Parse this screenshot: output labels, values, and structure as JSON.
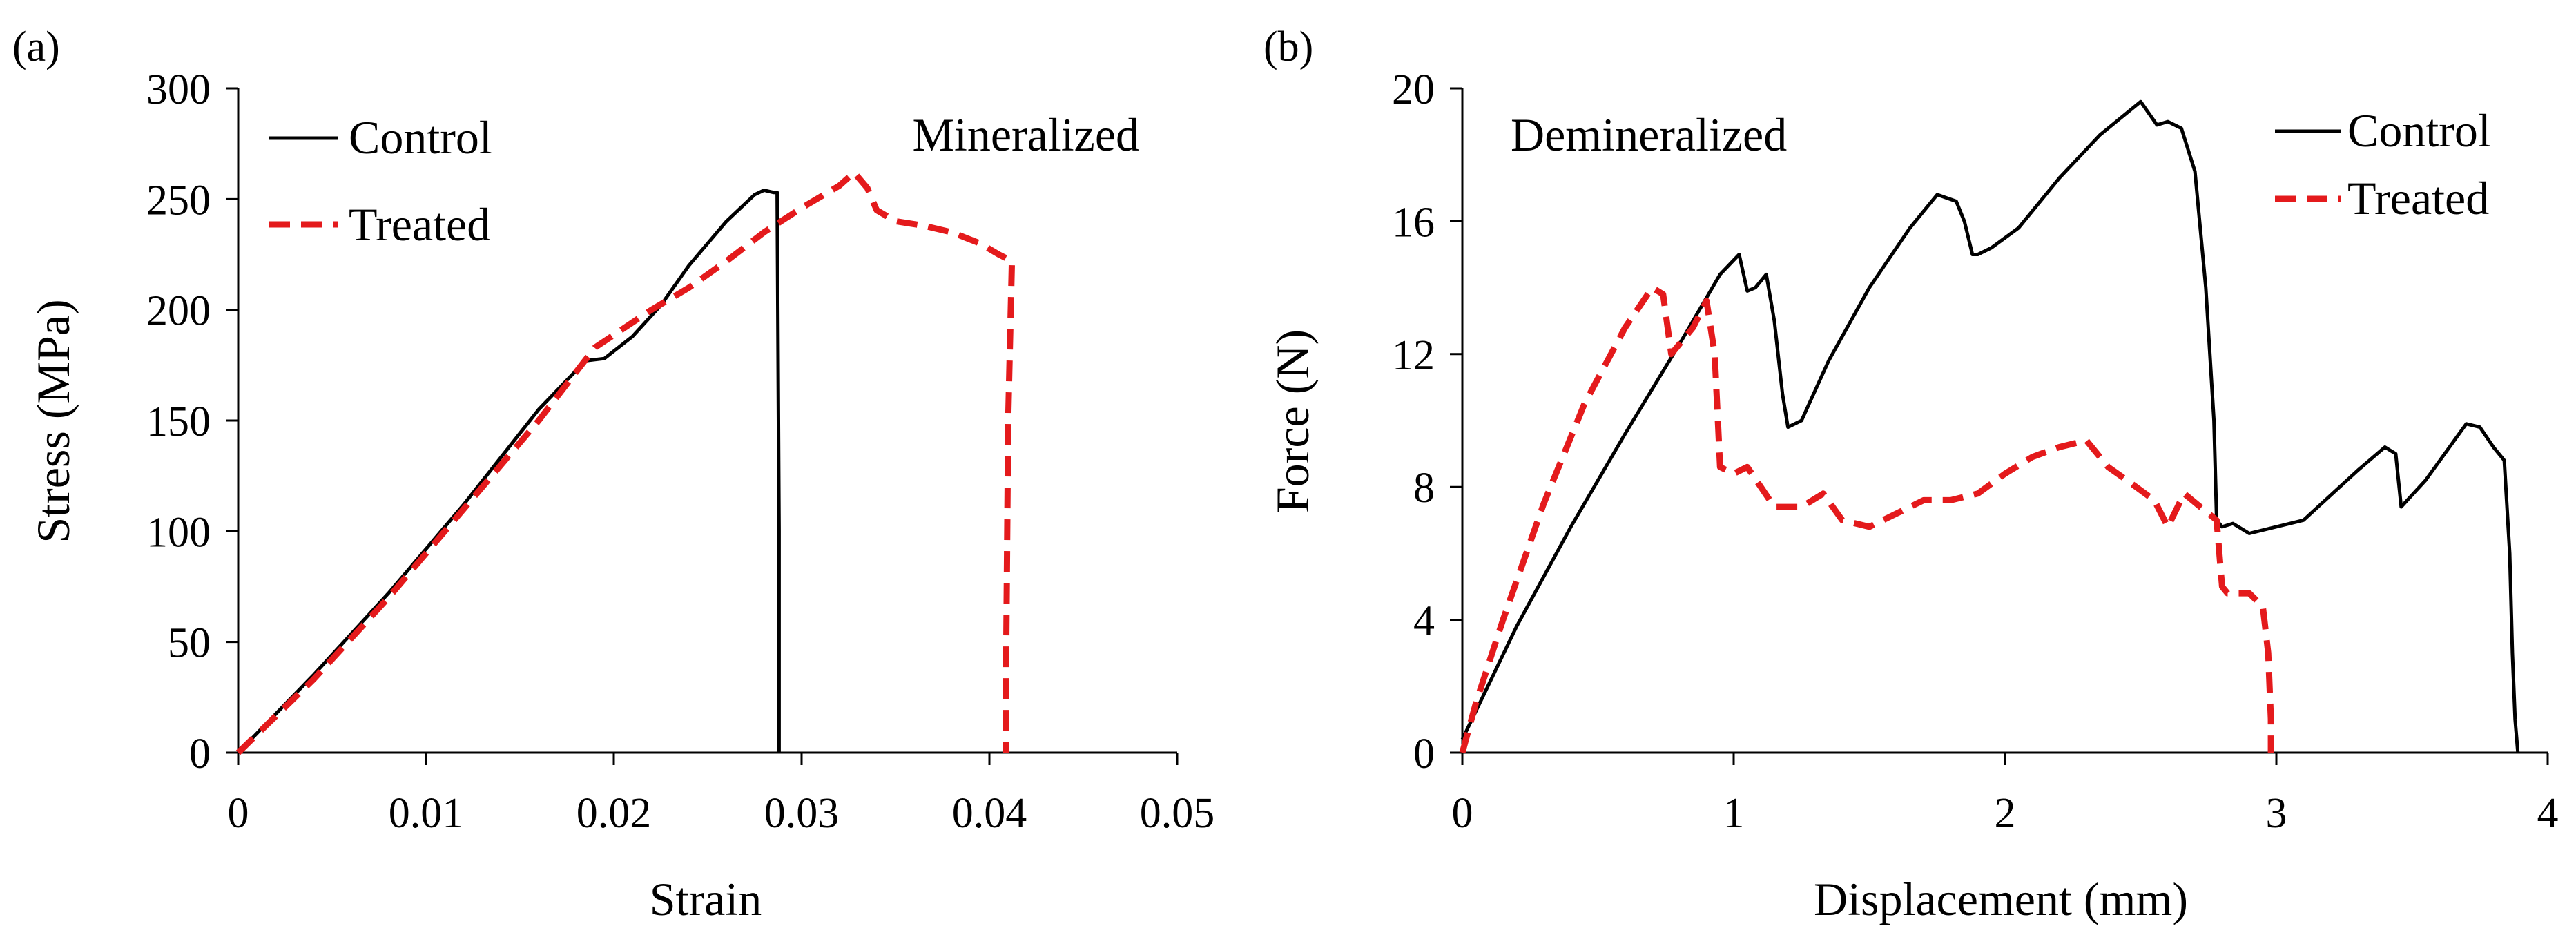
{
  "figure": {
    "panel_a_tag": "(a)",
    "panel_b_tag": "(b)"
  },
  "colors": {
    "control": "#000000",
    "treated": "#e41a1c",
    "axis": "#000000"
  },
  "chart_data": [
    {
      "id": "a",
      "type": "line",
      "annotation": "Mineralized",
      "xlabel": "Strain",
      "ylabel": "Stress (MPa)",
      "xlim": [
        0,
        0.05
      ],
      "ylim": [
        0,
        300
      ],
      "xticks": [
        0,
        0.01,
        0.02,
        0.03,
        0.04,
        0.05
      ],
      "xtick_labels": [
        "0",
        "0.01",
        "0.02",
        "0.03",
        "0.04",
        "0.05"
      ],
      "yticks": [
        0,
        50,
        100,
        150,
        200,
        250,
        300
      ],
      "ytick_labels": [
        "0",
        "50",
        "100",
        "150",
        "200",
        "250",
        "300"
      ],
      "legend_position": "top-left",
      "series": [
        {
          "name": "Control",
          "style": "solid",
          "x": [
            0,
            0.004,
            0.008,
            0.012,
            0.016,
            0.0185,
            0.0195,
            0.021,
            0.0225,
            0.024,
            0.026,
            0.0275,
            0.028,
            0.0285,
            0.0287,
            0.0288,
            0.0288
          ],
          "y": [
            0,
            35,
            72,
            112,
            155,
            177,
            178,
            188,
            202,
            220,
            240,
            252,
            254,
            253,
            253,
            100,
            0
          ]
        },
        {
          "name": "Treated",
          "style": "dashed",
          "x": [
            0,
            0.004,
            0.008,
            0.012,
            0.016,
            0.019,
            0.022,
            0.024,
            0.026,
            0.028,
            0.03,
            0.032,
            0.0328,
            0.0335,
            0.034,
            0.035,
            0.0365,
            0.038,
            0.0395,
            0.0405,
            0.0412,
            0.041,
            0.0409,
            0.0409
          ],
          "y": [
            0,
            33,
            70,
            110,
            150,
            183,
            200,
            210,
            222,
            235,
            246,
            256,
            262,
            255,
            245,
            240,
            238,
            235,
            230,
            225,
            222,
            150,
            50,
            0
          ]
        }
      ]
    },
    {
      "id": "b",
      "type": "line",
      "annotation": "Demineralized",
      "xlabel": "Displacement  (mm)",
      "ylabel": "Force  (N)",
      "xlim": [
        0,
        4
      ],
      "ylim": [
        0,
        20
      ],
      "xticks": [
        0,
        1,
        2,
        3,
        4
      ],
      "xtick_labels": [
        "0",
        "1",
        "2",
        "3",
        "4"
      ],
      "yticks": [
        0,
        4,
        8,
        12,
        16,
        20
      ],
      "ytick_labels": [
        "0",
        "4",
        "8",
        "12",
        "16",
        "20"
      ],
      "legend_position": "top-right",
      "series": [
        {
          "name": "Control",
          "style": "solid",
          "x": [
            0,
            0.2,
            0.4,
            0.6,
            0.8,
            0.95,
            1.02,
            1.05,
            1.08,
            1.12,
            1.15,
            1.18,
            1.2,
            1.25,
            1.35,
            1.5,
            1.65,
            1.75,
            1.82,
            1.85,
            1.88,
            1.9,
            1.95,
            2.05,
            2.2,
            2.35,
            2.5,
            2.56,
            2.6,
            2.65,
            2.7,
            2.74,
            2.77,
            2.78,
            2.8,
            2.84,
            2.9,
            3.1,
            3.3,
            3.4,
            3.44,
            3.46,
            3.55,
            3.7,
            3.75,
            3.8,
            3.84,
            3.86,
            3.87,
            3.88,
            3.89
          ],
          "y": [
            0.4,
            3.8,
            6.8,
            9.6,
            12.3,
            14.4,
            15.0,
            13.9,
            14.0,
            14.4,
            13.0,
            10.8,
            9.8,
            10.0,
            11.8,
            14.0,
            15.8,
            16.8,
            16.6,
            16.0,
            15.0,
            15.0,
            15.2,
            15.8,
            17.3,
            18.6,
            19.6,
            18.9,
            19.0,
            18.8,
            17.5,
            14.0,
            10.0,
            7.0,
            6.8,
            6.9,
            6.6,
            7.0,
            8.5,
            9.2,
            9.0,
            7.4,
            8.2,
            9.9,
            9.8,
            9.2,
            8.8,
            6.0,
            3.0,
            1.0,
            0.0
          ]
        },
        {
          "name": "Treated",
          "style": "dashed",
          "x": [
            0,
            0.05,
            0.15,
            0.3,
            0.45,
            0.6,
            0.7,
            0.74,
            0.77,
            0.85,
            0.9,
            0.93,
            0.95,
            1.0,
            1.05,
            1.1,
            1.15,
            1.25,
            1.33,
            1.4,
            1.5,
            1.6,
            1.7,
            1.8,
            1.9,
            2.0,
            2.1,
            2.2,
            2.3,
            2.38,
            2.45,
            2.55,
            2.6,
            2.66,
            2.72,
            2.78,
            2.8,
            2.82,
            2.9,
            2.95,
            2.97,
            2.98,
            2.98
          ],
          "y": [
            0,
            1.5,
            4.0,
            7.5,
            10.5,
            12.8,
            14.0,
            13.8,
            12.0,
            12.8,
            13.6,
            12.0,
            8.6,
            8.4,
            8.6,
            8.0,
            7.4,
            7.4,
            7.8,
            7.0,
            6.8,
            7.2,
            7.6,
            7.6,
            7.8,
            8.4,
            8.9,
            9.2,
            9.4,
            8.6,
            8.2,
            7.6,
            6.8,
            7.8,
            7.4,
            7.0,
            5.0,
            4.8,
            4.8,
            4.4,
            3.0,
            1.0,
            0.0
          ]
        }
      ]
    }
  ]
}
